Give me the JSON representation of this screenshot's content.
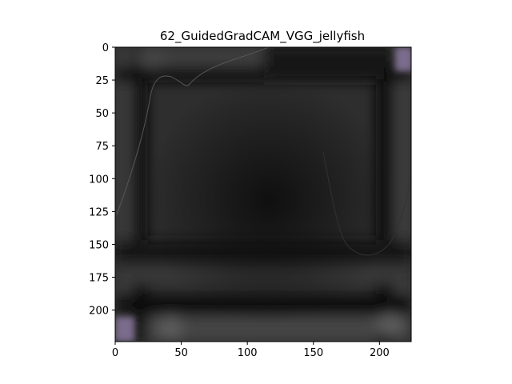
{
  "chart_data": {
    "type": "heatmap",
    "title": "62_GuidedGradCAM_VGG_jellyfish",
    "xlabel": "",
    "ylabel": "",
    "xlim": [
      0,
      224
    ],
    "ylim": [
      224,
      0
    ],
    "x_ticks": [
      0,
      50,
      100,
      150,
      200
    ],
    "y_ticks": [
      0,
      25,
      50,
      75,
      100,
      125,
      150,
      175,
      200
    ],
    "grid": false,
    "image_description_colors": {
      "background": "#2b2b2b",
      "dark_band": "#080808",
      "light_band": "#4a4a4a",
      "corner_tint": "#7a6c8c"
    }
  }
}
